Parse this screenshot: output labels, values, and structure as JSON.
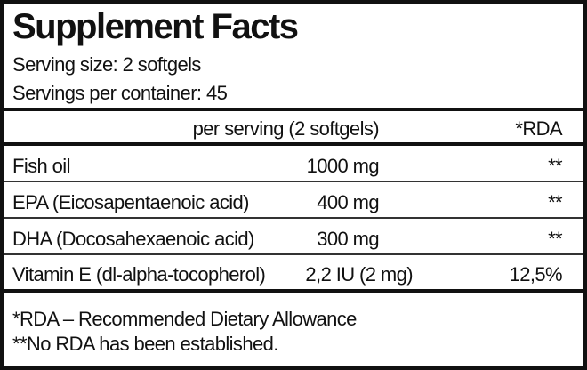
{
  "title": "Supplement Facts",
  "serving_size": "Serving size: 2 softgels",
  "servings_per_container": "Servings per container: 45",
  "header": {
    "amount": "per serving (2 softgels)",
    "rda": "*RDA"
  },
  "rows": [
    {
      "name": "Fish oil",
      "amount": "1000 mg",
      "rda": "**"
    },
    {
      "name": "EPA (Eicosapentaenoic acid)",
      "amount": "400 mg",
      "rda": "**"
    },
    {
      "name": "DHA (Docosahexaenoic acid)",
      "amount": "300 mg",
      "rda": "**"
    },
    {
      "name": "Vitamin E (dl-alpha-tocopherol)",
      "amount": "2,2 IU (2 mg)",
      "rda": "12,5%"
    }
  ],
  "footnotes": [
    "*RDA – Recommended Dietary Allowance",
    "**No RDA has been established."
  ]
}
